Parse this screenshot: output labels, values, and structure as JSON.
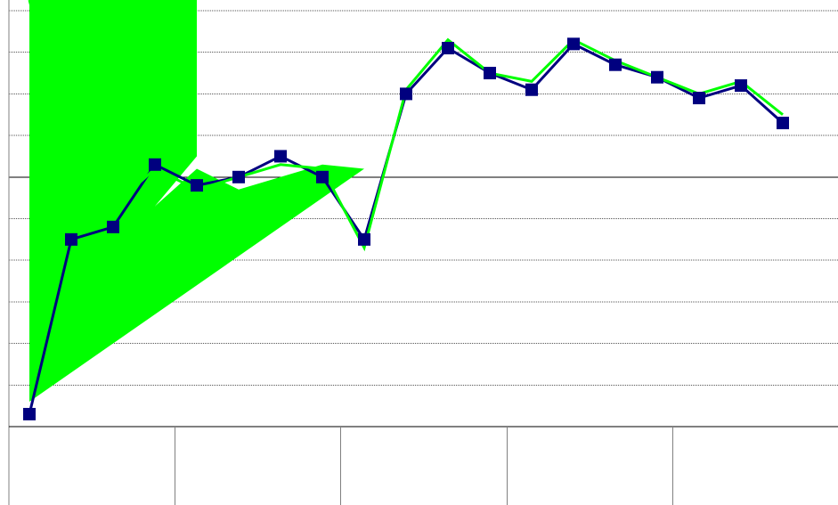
{
  "chart_data": {
    "type": "line",
    "title": "",
    "xlabel": "",
    "ylabel": "",
    "x": [
      1,
      2,
      3,
      4,
      5,
      6,
      7,
      8,
      9,
      10,
      11,
      12,
      13,
      14,
      15,
      16,
      17,
      18,
      19,
      20
    ],
    "ylim": [
      0,
      10
    ],
    "y_reference": 6,
    "x_category_dividers": 5,
    "grid": true,
    "series": [
      {
        "marker": "square",
        "color": "#00007f",
        "values": [
          0.3,
          4.5,
          4.8,
          6.3,
          5.8,
          6.0,
          6.5,
          6.0,
          4.5,
          8.0,
          9.1,
          8.5,
          8.1,
          9.2,
          8.7,
          8.4,
          7.9,
          8.2,
          7.3,
          null
        ]
      },
      {
        "marker": "none",
        "color": "#00ff00",
        "values": [
          10.5,
          6.5,
          5.3,
          6.2,
          5.7,
          6.0,
          6.3,
          6.2,
          4.3,
          8.1,
          9.3,
          8.5,
          8.3,
          9.3,
          8.8,
          8.4,
          8.0,
          8.3,
          7.5,
          null
        ],
        "fill_area": [
          [
            1,
            0.3
          ],
          [
            1,
            10.5
          ],
          [
            5,
            10.5
          ],
          [
            5,
            6.5
          ],
          [
            4,
            5.3
          ],
          [
            5,
            6.2
          ],
          [
            6,
            5.7
          ],
          [
            7,
            6.0
          ],
          [
            8,
            6.3
          ],
          [
            9,
            6.2
          ],
          [
            1,
            0.6
          ]
        ]
      }
    ]
  }
}
